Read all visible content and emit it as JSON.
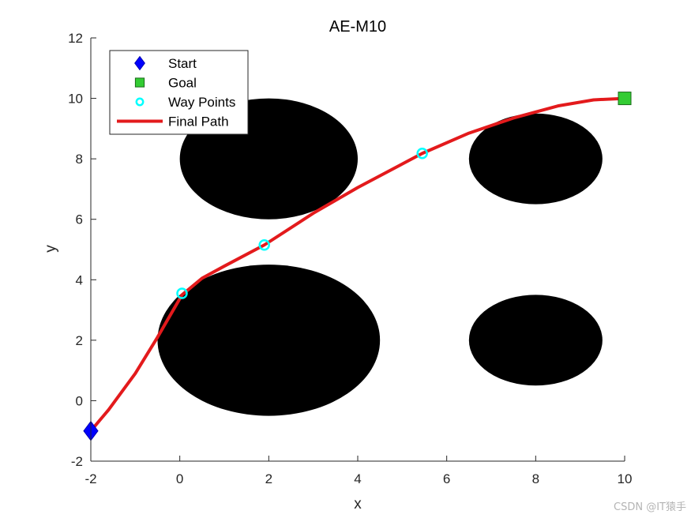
{
  "chart_data": {
    "type": "scatter",
    "title": "AE-M10",
    "xlabel": "x",
    "ylabel": "y",
    "xlim": [
      -2,
      10
    ],
    "ylim": [
      -2,
      12
    ],
    "xticks": [
      -2,
      0,
      2,
      4,
      6,
      8,
      10
    ],
    "yticks": [
      -2,
      0,
      2,
      4,
      6,
      8,
      10,
      12
    ],
    "grid": false,
    "legend_position": "top-left",
    "obstacles": [
      {
        "cx": 2,
        "cy": 8,
        "rx": 2,
        "ry": 2,
        "color": "#000000"
      },
      {
        "cx": 2,
        "cy": 2,
        "rx": 2.5,
        "ry": 2.5,
        "color": "#000000"
      },
      {
        "cx": 8,
        "cy": 8,
        "rx": 1.5,
        "ry": 1.5,
        "color": "#000000"
      },
      {
        "cx": 8,
        "cy": 2,
        "rx": 1.5,
        "ry": 1.5,
        "color": "#000000"
      }
    ],
    "series": [
      {
        "name": "Start",
        "marker": "diamond",
        "color": "#0000ff",
        "points": [
          {
            "x": -2,
            "y": -1
          }
        ]
      },
      {
        "name": "Goal",
        "marker": "square",
        "color": "#00ff00",
        "points": [
          {
            "x": 10,
            "y": 10
          }
        ]
      },
      {
        "name": "Way Points",
        "marker": "circle",
        "color": "#00ffff",
        "points": [
          {
            "x": 0.05,
            "y": 3.55
          },
          {
            "x": 1.9,
            "y": 5.15
          },
          {
            "x": 5.45,
            "y": 8.18
          }
        ]
      },
      {
        "name": "Final Path",
        "marker": "line",
        "color": "#e31a1c",
        "points": [
          {
            "x": -2,
            "y": -1
          },
          {
            "x": -1.6,
            "y": -0.3
          },
          {
            "x": -1.0,
            "y": 0.9
          },
          {
            "x": -0.5,
            "y": 2.1
          },
          {
            "x": 0.05,
            "y": 3.5
          },
          {
            "x": 0.5,
            "y": 4.05
          },
          {
            "x": 1.0,
            "y": 4.45
          },
          {
            "x": 1.9,
            "y": 5.15
          },
          {
            "x": 3.0,
            "y": 6.2
          },
          {
            "x": 4.0,
            "y": 7.05
          },
          {
            "x": 5.45,
            "y": 8.18
          },
          {
            "x": 6.5,
            "y": 8.85
          },
          {
            "x": 7.5,
            "y": 9.35
          },
          {
            "x": 8.5,
            "y": 9.75
          },
          {
            "x": 9.3,
            "y": 9.95
          },
          {
            "x": 10,
            "y": 10
          }
        ]
      }
    ]
  },
  "watermark": "CSDN @IT猿手"
}
